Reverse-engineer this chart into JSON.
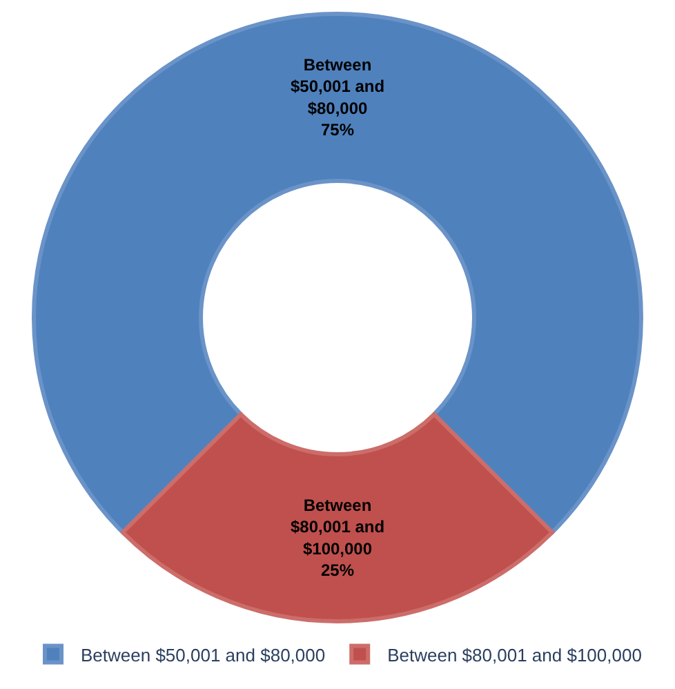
{
  "chart_data": {
    "type": "donut",
    "categories": [
      "Between $50,001 and $80,000",
      "Between $80,001 and $100,000"
    ],
    "values": [
      75,
      25
    ],
    "colors": [
      "#4f81bd",
      "#c0504d"
    ],
    "value_labels": [
      "75%",
      "25%"
    ],
    "legend": "bottom"
  }
}
